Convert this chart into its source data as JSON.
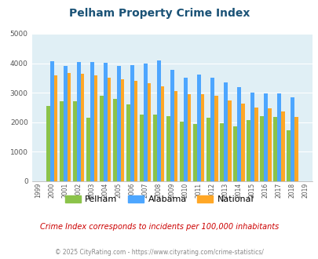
{
  "title": "Pelham Property Crime Index",
  "years": [
    1999,
    2000,
    2001,
    2002,
    2003,
    2004,
    2005,
    2006,
    2007,
    2008,
    2009,
    2010,
    2011,
    2012,
    2013,
    2014,
    2015,
    2016,
    2017,
    2018,
    2019
  ],
  "pelham": [
    null,
    2550,
    2700,
    2700,
    2150,
    2900,
    2800,
    2600,
    2250,
    2250,
    2200,
    2020,
    1930,
    2150,
    1980,
    1850,
    2080,
    2200,
    2180,
    1720,
    null
  ],
  "alabama": [
    null,
    4060,
    3900,
    4030,
    4050,
    4020,
    3910,
    3930,
    3980,
    4100,
    3770,
    3500,
    3610,
    3500,
    3360,
    3180,
    3010,
    2980,
    2980,
    2840,
    null
  ],
  "national": [
    null,
    3600,
    3660,
    3630,
    3590,
    3510,
    3460,
    3400,
    3320,
    3210,
    3050,
    2940,
    2950,
    2890,
    2740,
    2620,
    2490,
    2470,
    2360,
    2190,
    null
  ],
  "pelham_color": "#8bc34a",
  "alabama_color": "#4da6ff",
  "national_color": "#ffa726",
  "bg_color": "#e0eff5",
  "ylim": [
    0,
    5000
  ],
  "yticks": [
    0,
    1000,
    2000,
    3000,
    4000,
    5000
  ],
  "note": "Crime Index corresponds to incidents per 100,000 inhabitants",
  "footer": "© 2025 CityRating.com - https://www.cityrating.com/crime-statistics/",
  "title_color": "#1a5276",
  "note_color": "#cc0000",
  "footer_color": "#888888"
}
